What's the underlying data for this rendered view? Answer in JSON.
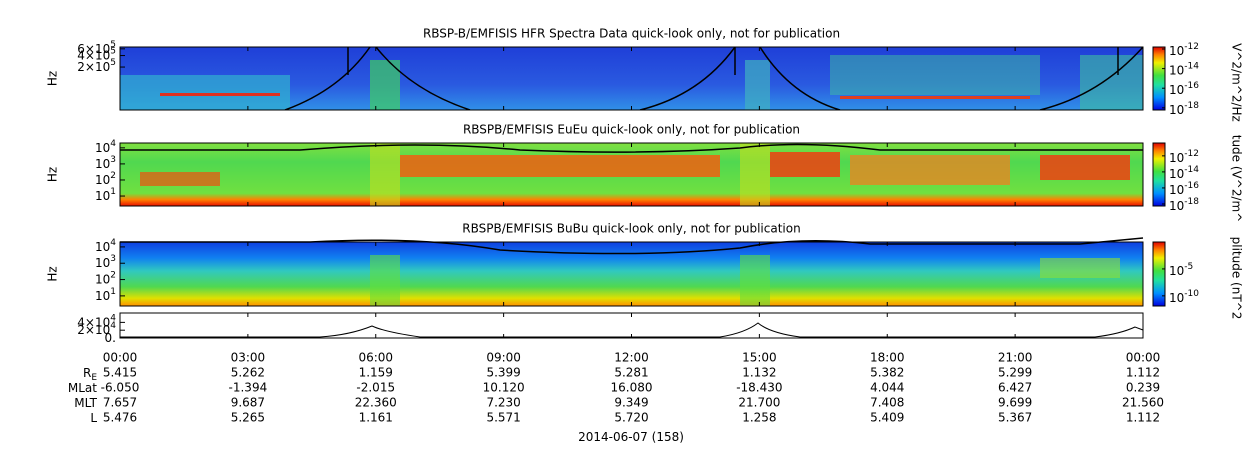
{
  "panels": [
    {
      "title": "RBSP-B/EMFISIS  HFR Spectra Data quick-look only, not for publication",
      "ylabel": "Hz",
      "log": true,
      "ylim": [
        15000,
        670000
      ],
      "yticks": [
        {
          "value": 600000,
          "label": "6×10",
          "exp": "5"
        },
        {
          "value": 400000,
          "label": "4×10",
          "exp": "5"
        },
        {
          "value": 200000,
          "label": "2×10",
          "exp": "5"
        }
      ],
      "colorbar": {
        "label": "V^2/m^2/Hz",
        "log": true,
        "lim": [
          6e-19,
          1.6e-12
        ],
        "ticks": [
          {
            "value": 1e-12,
            "label": "10",
            "exp": "-12"
          },
          {
            "value": 1e-14,
            "label": "10",
            "exp": "-14"
          },
          {
            "value": 1e-16,
            "label": "10",
            "exp": "-16"
          },
          {
            "value": 1e-18,
            "label": "10",
            "exp": "-18"
          }
        ]
      }
    },
    {
      "title": "RBSPB/EMFISIS  EuEu quick-look only, not for publication",
      "ylabel": "Hz",
      "log": true,
      "ylim": [
        2.4,
        20000
      ],
      "yticks": [
        {
          "value": 10000,
          "label": "10",
          "exp": "4"
        },
        {
          "value": 1000,
          "label": "10",
          "exp": "3"
        },
        {
          "value": 100,
          "label": "10",
          "exp": "2"
        },
        {
          "value": 10,
          "label": "10",
          "exp": "1"
        }
      ],
      "colorbar": {
        "label": "tude (V^2/m^",
        "log": true,
        "lim": [
          5.6e-19,
          4e-11
        ],
        "ticks": [
          {
            "value": 1e-12,
            "label": "10",
            "exp": "-12"
          },
          {
            "value": 1e-14,
            "label": "10",
            "exp": "-14"
          },
          {
            "value": 1e-16,
            "label": "10",
            "exp": "-16"
          },
          {
            "value": 1e-18,
            "label": "10",
            "exp": "-18"
          }
        ]
      }
    },
    {
      "title": "RBSPB/EMFISIS  BuBu quick-look only, not for publication",
      "ylabel": "Hz",
      "log": true,
      "ylim": [
        2.4,
        20000
      ],
      "yticks": [
        {
          "value": 10000,
          "label": "10",
          "exp": "4"
        },
        {
          "value": 1000,
          "label": "10",
          "exp": "3"
        },
        {
          "value": 100,
          "label": "10",
          "exp": "2"
        },
        {
          "value": 10,
          "label": "10",
          "exp": "1"
        }
      ],
      "colorbar": {
        "label": "plitude (nT^2",
        "log": true,
        "lim": [
          1.3e-12,
          1
        ],
        "ticks": [
          {
            "value": 1e-05,
            "label": "10",
            "exp": "-5"
          },
          {
            "value": 1e-10,
            "label": "10",
            "exp": "-10"
          }
        ]
      }
    },
    {
      "log": false,
      "ylim": [
        0,
        64000
      ],
      "yticks": [
        {
          "value": 40000,
          "label": "4×10",
          "exp": "4"
        },
        {
          "value": 20000,
          "label": "2×10",
          "exp": "4"
        },
        {
          "value": 0,
          "label": "0."
        }
      ]
    }
  ],
  "time": {
    "xlim": [
      0,
      24
    ],
    "xticks": [
      {
        "value": 0,
        "label": "00:00"
      },
      {
        "value": 3,
        "label": "03:00"
      },
      {
        "value": 6,
        "label": "06:00"
      },
      {
        "value": 9,
        "label": "09:00"
      },
      {
        "value": 12,
        "label": "12:00"
      },
      {
        "value": 15,
        "label": "15:00"
      },
      {
        "value": 18,
        "label": "18:00"
      },
      {
        "value": 21,
        "label": "21:00"
      },
      {
        "value": 24,
        "label": "00:00"
      }
    ]
  },
  "ephemeris": [
    {
      "label": "R",
      "sub": "E",
      "values": [
        "5.415",
        "5.262",
        "1.159",
        "5.399",
        "5.281",
        "1.132",
        "5.382",
        "5.299",
        "1.112"
      ]
    },
    {
      "label": "MLat",
      "values": [
        "-6.050",
        "-1.394",
        "-2.015",
        "10.120",
        "16.080",
        "-18.430",
        "4.044",
        "6.427",
        "0.239"
      ]
    },
    {
      "label": "MLT",
      "values": [
        "7.657",
        "9.687",
        "22.360",
        "7.230",
        "9.349",
        "21.700",
        "7.408",
        "9.699",
        "21.560"
      ]
    },
    {
      "label": "L",
      "values": [
        "5.476",
        "5.265",
        "1.161",
        "5.571",
        "5.720",
        "1.258",
        "5.409",
        "5.367",
        "1.112"
      ]
    }
  ],
  "date": "2014-06-07 (158)"
}
